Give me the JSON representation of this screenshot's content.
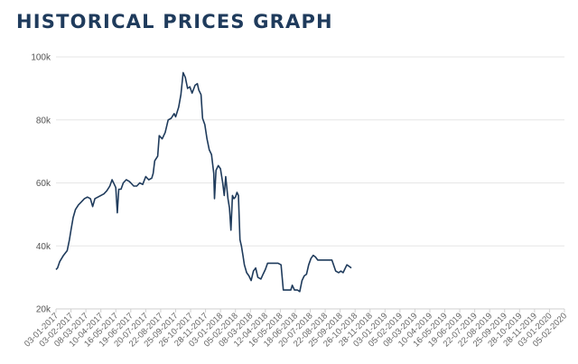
{
  "header": {
    "title": "HISTORICAL PRICES GRAPH"
  },
  "colors": {
    "title": "#1f3b5c",
    "line": "#1f3b5c",
    "grid": "#e6e6e6"
  },
  "chart_data": {
    "type": "line",
    "title": "HISTORICAL PRICES GRAPH",
    "xlabel": "",
    "ylabel": "",
    "ylim": [
      20000,
      100000
    ],
    "yticks": [
      20000,
      40000,
      60000,
      80000,
      100000
    ],
    "ytick_labels": [
      "20k",
      "40k",
      "60k",
      "80k",
      "100k"
    ],
    "xtick_labels": [
      "03-01-2017",
      "03-02-2017",
      "08-03-2017",
      "10-04-2017",
      "16-05-2017",
      "19-06-2017",
      "20-07-2017",
      "22-08-2017",
      "25-09-2017",
      "26-10-2017",
      "28-11-2017",
      "03-01-2018",
      "05-02-2018",
      "08-03-2018",
      "12-04-2018",
      "16-05-2018",
      "18-06-2018",
      "20-07-2018",
      "22-08-2018",
      "25-09-2018",
      "26-10-2018",
      "28-11-2018",
      "03-01-2019",
      "05-02-2019",
      "08-03-2019",
      "10-04-2019",
      "16-05-2019",
      "19-06-2019",
      "22-07-2019",
      "22-08-2019",
      "25-09-2019",
      "28-10-2019",
      "28-11-2019",
      "03-01-2020",
      "05-02-2020"
    ],
    "grid": true,
    "legend": "none",
    "series": [
      {
        "values": [
          [
            0,
            32500
          ],
          [
            0.1,
            33000
          ],
          [
            0.25,
            35000
          ],
          [
            0.5,
            37000
          ],
          [
            0.75,
            38500
          ],
          [
            0.9,
            42000
          ],
          [
            1.0,
            45000
          ],
          [
            1.15,
            49000
          ],
          [
            1.3,
            51500
          ],
          [
            1.5,
            53000
          ],
          [
            1.7,
            54000
          ],
          [
            1.9,
            55000
          ],
          [
            2.1,
            55500
          ],
          [
            2.3,
            55000
          ],
          [
            2.45,
            52500
          ],
          [
            2.6,
            55000
          ],
          [
            2.8,
            55500
          ],
          [
            3.0,
            56000
          ],
          [
            3.2,
            56500
          ],
          [
            3.4,
            57500
          ],
          [
            3.6,
            59000
          ],
          [
            3.75,
            61000
          ],
          [
            3.9,
            59500
          ],
          [
            4.0,
            58500
          ],
          [
            4.1,
            50500
          ],
          [
            4.2,
            58000
          ],
          [
            4.35,
            58000
          ],
          [
            4.5,
            60000
          ],
          [
            4.7,
            61000
          ],
          [
            4.9,
            60500
          ],
          [
            5.0,
            60000
          ],
          [
            5.2,
            59000
          ],
          [
            5.4,
            59000
          ],
          [
            5.6,
            60000
          ],
          [
            5.8,
            59500
          ],
          [
            6.0,
            62000
          ],
          [
            6.2,
            61000
          ],
          [
            6.4,
            61500
          ],
          [
            6.5,
            63000
          ],
          [
            6.6,
            67000
          ],
          [
            6.8,
            68500
          ],
          [
            6.9,
            75000
          ],
          [
            7.1,
            74000
          ],
          [
            7.3,
            76000
          ],
          [
            7.5,
            80000
          ],
          [
            7.7,
            80500
          ],
          [
            7.9,
            82000
          ],
          [
            8.0,
            81000
          ],
          [
            8.2,
            84000
          ],
          [
            8.35,
            88000
          ],
          [
            8.5,
            95000
          ],
          [
            8.65,
            93500
          ],
          [
            8.8,
            90000
          ],
          [
            8.95,
            90500
          ],
          [
            9.1,
            88500
          ],
          [
            9.3,
            91000
          ],
          [
            9.45,
            91500
          ],
          [
            9.55,
            89500
          ],
          [
            9.7,
            88000
          ],
          [
            9.8,
            80500
          ],
          [
            9.95,
            78500
          ],
          [
            10.1,
            74000
          ],
          [
            10.25,
            70500
          ],
          [
            10.4,
            69000
          ],
          [
            10.55,
            63000
          ],
          [
            10.6,
            55000
          ],
          [
            10.7,
            64000
          ],
          [
            10.85,
            65500
          ],
          [
            11.0,
            64500
          ],
          [
            11.15,
            60000
          ],
          [
            11.25,
            56000
          ],
          [
            11.35,
            62000
          ],
          [
            11.5,
            55000
          ],
          [
            11.6,
            52000
          ],
          [
            11.7,
            45000
          ],
          [
            11.8,
            56000
          ],
          [
            11.9,
            55000
          ],
          [
            12.0,
            55500
          ],
          [
            12.1,
            57000
          ],
          [
            12.2,
            56000
          ],
          [
            12.3,
            42000
          ],
          [
            12.4,
            40000
          ],
          [
            12.5,
            37000
          ],
          [
            12.6,
            34000
          ],
          [
            12.75,
            31500
          ],
          [
            12.9,
            30500
          ],
          [
            13.05,
            29000
          ],
          [
            13.2,
            32000
          ],
          [
            13.35,
            33000
          ],
          [
            13.5,
            30000
          ],
          [
            13.7,
            29500
          ],
          [
            13.85,
            31000
          ],
          [
            14.0,
            32500
          ],
          [
            14.15,
            34500
          ],
          [
            14.4,
            34500
          ],
          [
            14.6,
            34500
          ],
          [
            14.85,
            34500
          ],
          [
            15.05,
            34000
          ],
          [
            15.2,
            26000
          ],
          [
            15.5,
            26000
          ],
          [
            15.7,
            26000
          ],
          [
            15.8,
            27500
          ],
          [
            15.95,
            26000
          ],
          [
            16.15,
            26000
          ],
          [
            16.3,
            25500
          ],
          [
            16.45,
            29000
          ],
          [
            16.6,
            30500
          ],
          [
            16.75,
            31000
          ],
          [
            16.9,
            34000
          ],
          [
            17.05,
            36000
          ],
          [
            17.2,
            37000
          ],
          [
            17.35,
            36500
          ],
          [
            17.5,
            35500
          ],
          [
            17.7,
            35500
          ],
          [
            17.9,
            35500
          ],
          [
            18.2,
            35500
          ],
          [
            18.45,
            35500
          ],
          [
            18.7,
            32000
          ],
          [
            18.9,
            31500
          ],
          [
            19.05,
            32000
          ],
          [
            19.2,
            31500
          ],
          [
            19.35,
            33000
          ],
          [
            19.45,
            34000
          ],
          [
            19.6,
            33500
          ],
          [
            19.75,
            33000
          ]
        ]
      }
    ]
  }
}
